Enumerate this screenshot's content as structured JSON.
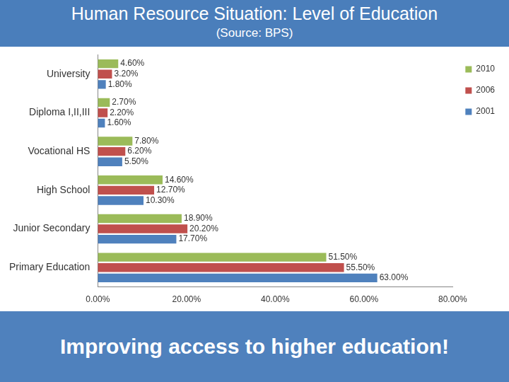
{
  "chart_data": {
    "type": "bar",
    "orientation": "horizontal",
    "title": "Human Resource Situation: Level of Education",
    "subtitle": "(Source: BPS)",
    "annotation": "Improving access to higher education!",
    "categories": [
      "University",
      "Diploma I,II,III",
      "Vocational HS",
      "High School",
      "Junior Secondary",
      "Primary Education"
    ],
    "series": [
      {
        "name": "2010",
        "color": "#9bbb59",
        "values": [
          4.6,
          2.7,
          7.8,
          14.6,
          18.9,
          51.5
        ],
        "value_labels": [
          "4.60%",
          "2.70%",
          "7.80%",
          "14.60%",
          "18.90%",
          "51.50%"
        ]
      },
      {
        "name": "2006",
        "color": "#c0504d",
        "values": [
          3.2,
          2.2,
          6.2,
          12.7,
          20.2,
          55.5
        ],
        "value_labels": [
          "3.20%",
          "2.20%",
          "6.20%",
          "12.70%",
          "20.20%",
          "55.50%"
        ]
      },
      {
        "name": "2001",
        "color": "#4f81bd",
        "values": [
          1.8,
          1.6,
          5.5,
          10.3,
          17.7,
          63.0
        ],
        "value_labels": [
          "1.80%",
          "1.60%",
          "5.50%",
          "10.30%",
          "17.70%",
          "63.00%"
        ]
      }
    ],
    "xlim": [
      0,
      80
    ],
    "xticks": [
      {
        "value": 0,
        "label": "0.00%"
      },
      {
        "value": 20,
        "label": "20.00%"
      },
      {
        "value": 40,
        "label": "40.00%"
      },
      {
        "value": 60,
        "label": "60.00%"
      },
      {
        "value": 80,
        "label": "80.00%"
      }
    ],
    "grid": false,
    "legend": "right",
    "data_labels": true
  }
}
